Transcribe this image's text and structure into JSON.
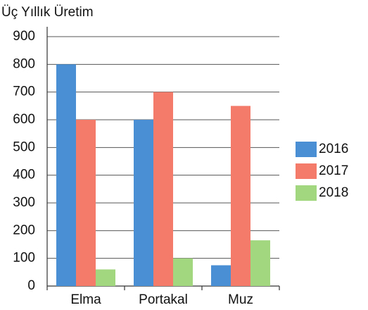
{
  "chart_data": {
    "type": "bar",
    "title": "Üç Yıllık Üretim",
    "categories": [
      "Elma",
      "Portakal",
      "Muz"
    ],
    "series": [
      {
        "name": "2016",
        "color": "#4a8fd3",
        "values": [
          800,
          600,
          75
        ]
      },
      {
        "name": "2017",
        "color": "#f47b6a",
        "values": [
          600,
          700,
          650
        ]
      },
      {
        "name": "2018",
        "color": "#a2d67f",
        "values": [
          60,
          100,
          165
        ]
      }
    ],
    "ylim": [
      0,
      900
    ],
    "yticks": [
      0,
      100,
      200,
      300,
      400,
      500,
      600,
      700,
      800,
      900
    ],
    "grid": true,
    "legend": "right"
  }
}
